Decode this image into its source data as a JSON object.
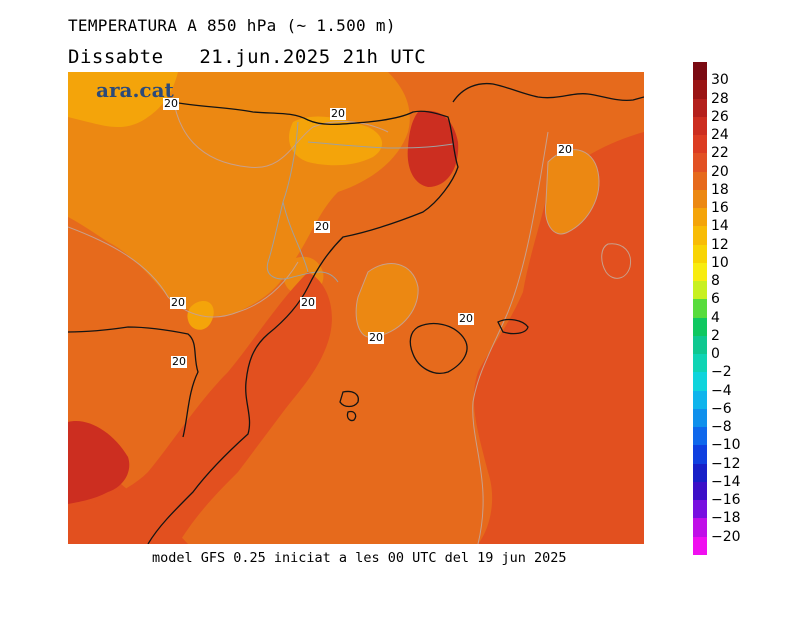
{
  "header": {
    "title": "TEMPERATURA A 850 hPa (~ 1.500 m)",
    "day": "Dissabte",
    "datetime": "21.jun.2025 21h UTC"
  },
  "brand": "ara.cat",
  "footer": "model GFS 0.25 iniciat a les 00 UTC del 19 jun 2025",
  "contour_labels": [
    "20",
    "20",
    "20",
    "20",
    "20",
    "20",
    "20",
    "20",
    "20"
  ],
  "legend": {
    "labels": [
      "30",
      "28",
      "26",
      "24",
      "22",
      "20",
      "18",
      "16",
      "14",
      "12",
      "10",
      "8",
      "6",
      "4",
      "2",
      "0",
      "−2",
      "−4",
      "−6",
      "−8",
      "−10",
      "−12",
      "−14",
      "−16",
      "−18",
      "−20"
    ],
    "colors": [
      "#7a0a12",
      "#9a1414",
      "#b4201c",
      "#cc2e20",
      "#dc3c22",
      "#e25124",
      "#e66a1c",
      "#ec8812",
      "#f4a40a",
      "#f8bc06",
      "#f8d404",
      "#f8ec10",
      "#c8f020",
      "#58dc3c",
      "#10c860",
      "#10c890",
      "#10d4b4",
      "#10d4dc",
      "#10b4ec",
      "#1090ec",
      "#1068ec",
      "#1040e0",
      "#1820c8",
      "#3c10c8",
      "#7810e0",
      "#c010e8",
      "#f010f0"
    ]
  },
  "colors": {
    "background": "#e2501f",
    "warm_land": "#e66a1c",
    "cool_pyrenees": "#ec8812",
    "coolest": "#f4a40a",
    "hot_south": "#cc2e20",
    "contour_line": "#c8a08c",
    "border_line": "#a0a0a0",
    "coast_line": "#141414"
  }
}
